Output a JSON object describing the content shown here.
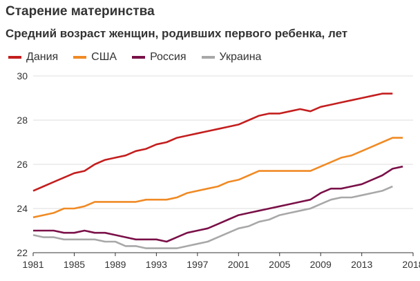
{
  "title": "Старение материнства",
  "subtitle": "Средний возраст женщин, родивших первого ребенка, лет",
  "chart_data": {
    "type": "line",
    "title": "Старение материнства",
    "subtitle": "Средний возраст женщин, родивших первого ребенка, лет",
    "xlabel": "",
    "ylabel": "",
    "xlim": [
      1981,
      2018
    ],
    "ylim": [
      22,
      30
    ],
    "x_ticks": [
      "1981",
      "1985",
      "1989",
      "1993",
      "1997",
      "2001",
      "2005",
      "2009",
      "2013",
      "2018"
    ],
    "y_ticks": [
      "22",
      "24",
      "26",
      "28",
      "30"
    ],
    "grid": "horizontal",
    "legend_position": "top-left",
    "series": [
      {
        "name": "Дания",
        "color": "#c41e1e",
        "x": [
          1981,
          1982,
          1983,
          1984,
          1985,
          1986,
          1987,
          1988,
          1989,
          1990,
          1991,
          1992,
          1993,
          1994,
          1995,
          1996,
          1997,
          1998,
          1999,
          2000,
          2001,
          2002,
          2003,
          2004,
          2005,
          2006,
          2007,
          2008,
          2009,
          2010,
          2011,
          2012,
          2013,
          2014,
          2015,
          2016
        ],
        "y": [
          24.8,
          25.0,
          25.2,
          25.4,
          25.6,
          25.7,
          26.0,
          26.2,
          26.3,
          26.4,
          26.6,
          26.7,
          26.9,
          27.0,
          27.2,
          27.3,
          27.4,
          27.5,
          27.6,
          27.7,
          27.8,
          28.0,
          28.2,
          28.3,
          28.3,
          28.4,
          28.5,
          28.4,
          28.6,
          28.7,
          28.8,
          28.9,
          29.0,
          29.1,
          29.2,
          29.2
        ]
      },
      {
        "name": "США",
        "color": "#f08a24",
        "x": [
          1981,
          1982,
          1983,
          1984,
          1985,
          1986,
          1987,
          1988,
          1989,
          1990,
          1991,
          1992,
          1993,
          1994,
          1995,
          1996,
          1997,
          1998,
          1999,
          2000,
          2001,
          2002,
          2003,
          2004,
          2005,
          2006,
          2007,
          2008,
          2009,
          2010,
          2011,
          2012,
          2013,
          2014,
          2015,
          2016,
          2017
        ],
        "y": [
          23.6,
          23.7,
          23.8,
          24.0,
          24.0,
          24.1,
          24.3,
          24.3,
          24.3,
          24.3,
          24.3,
          24.4,
          24.4,
          24.4,
          24.5,
          24.7,
          24.8,
          24.9,
          25.0,
          25.2,
          25.3,
          25.5,
          25.7,
          25.7,
          25.7,
          25.7,
          25.7,
          25.7,
          25.9,
          26.1,
          26.3,
          26.4,
          26.6,
          26.8,
          27.0,
          27.2,
          27.2
        ]
      },
      {
        "name": "Россия",
        "color": "#7a1048",
        "x": [
          1981,
          1982,
          1983,
          1984,
          1985,
          1986,
          1987,
          1988,
          1989,
          1990,
          1991,
          1992,
          1993,
          1994,
          1995,
          1996,
          1997,
          1998,
          1999,
          2000,
          2001,
          2002,
          2003,
          2004,
          2005,
          2006,
          2007,
          2008,
          2009,
          2010,
          2011,
          2012,
          2013,
          2014,
          2015,
          2016,
          2017
        ],
        "y": [
          23.0,
          23.0,
          23.0,
          22.9,
          22.9,
          23.0,
          22.9,
          22.9,
          22.8,
          22.7,
          22.6,
          22.6,
          22.6,
          22.5,
          22.7,
          22.9,
          23.0,
          23.1,
          23.3,
          23.5,
          23.7,
          23.8,
          23.9,
          24.0,
          24.1,
          24.2,
          24.3,
          24.4,
          24.7,
          24.9,
          24.9,
          25.0,
          25.1,
          25.3,
          25.5,
          25.8,
          25.9
        ]
      },
      {
        "name": "Украина",
        "color": "#a8a8a8",
        "x": [
          1981,
          1982,
          1983,
          1984,
          1985,
          1986,
          1987,
          1988,
          1989,
          1990,
          1991,
          1992,
          1993,
          1994,
          1995,
          1996,
          1997,
          1998,
          1999,
          2000,
          2001,
          2002,
          2003,
          2004,
          2005,
          2006,
          2007,
          2008,
          2009,
          2010,
          2011,
          2012,
          2013,
          2014,
          2015,
          2016
        ],
        "y": [
          22.8,
          22.7,
          22.7,
          22.6,
          22.6,
          22.6,
          22.6,
          22.5,
          22.5,
          22.3,
          22.3,
          22.2,
          22.2,
          22.2,
          22.2,
          22.3,
          22.4,
          22.5,
          22.7,
          22.9,
          23.1,
          23.2,
          23.4,
          23.5,
          23.7,
          23.8,
          23.9,
          24.0,
          24.2,
          24.4,
          24.5,
          24.5,
          24.6,
          24.7,
          24.8,
          25.0
        ]
      }
    ]
  }
}
